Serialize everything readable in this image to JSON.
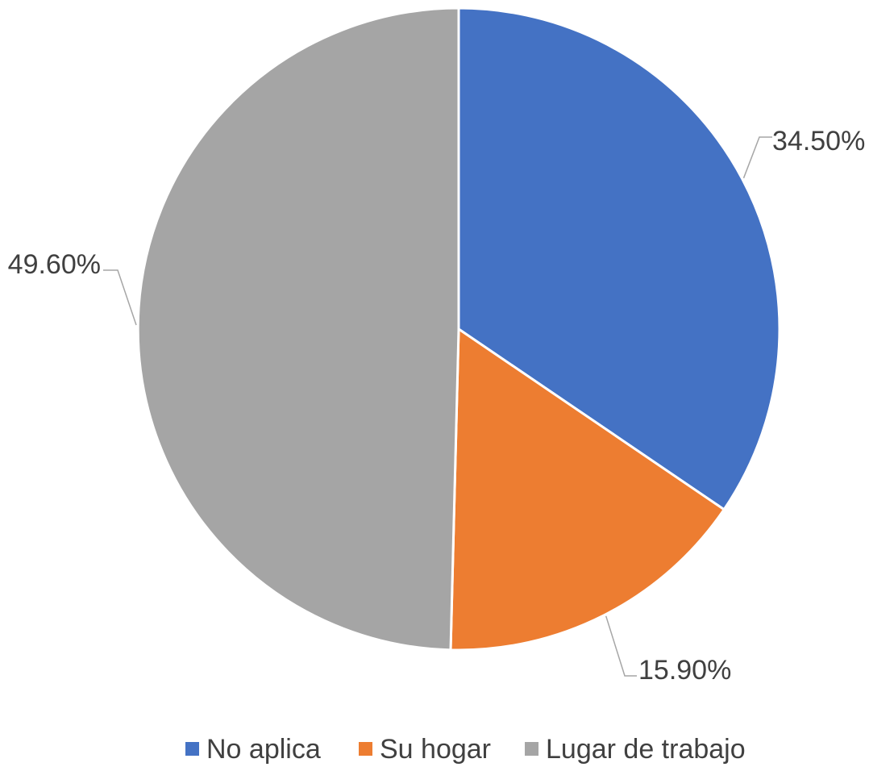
{
  "chart_data": {
    "type": "pie",
    "categories": [
      "No aplica",
      "Su hogar",
      "Lugar de trabajo"
    ],
    "values": [
      34.5,
      15.9,
      49.6
    ],
    "data_labels": [
      "34.50%",
      "15.90%",
      "49.60%"
    ],
    "colors": [
      "#4472C4",
      "#ED7D31",
      "#A5A5A5"
    ],
    "title": "",
    "legend_position": "bottom",
    "start_angle": "12 o'clock",
    "direction": "clockwise"
  }
}
